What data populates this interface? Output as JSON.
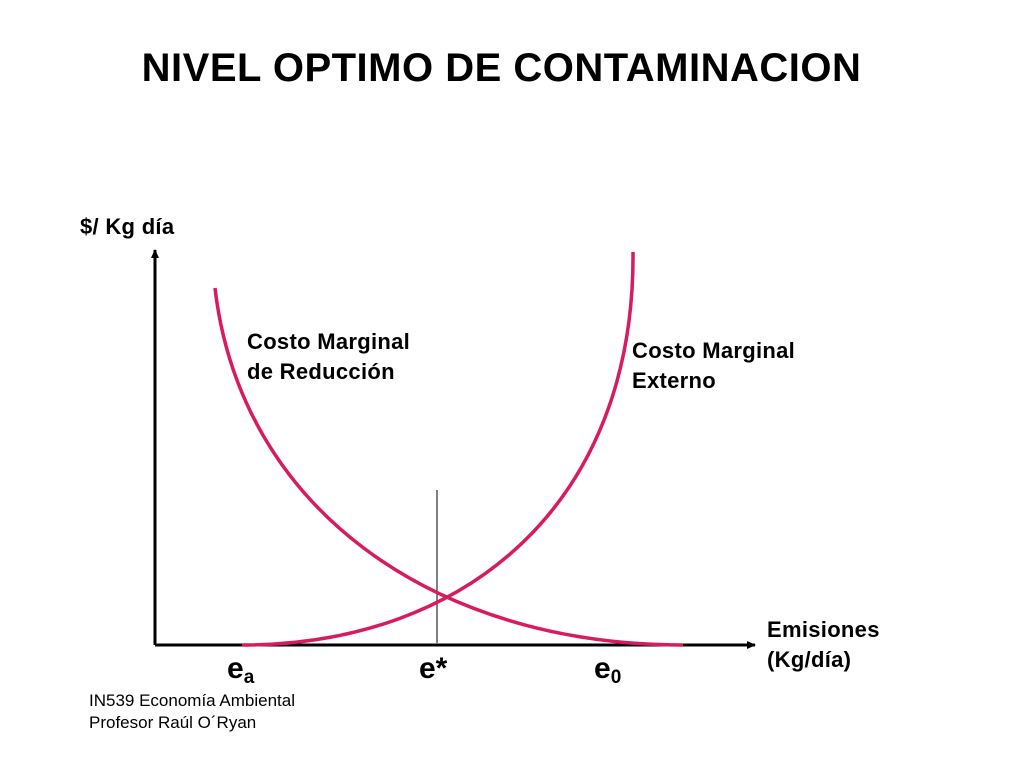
{
  "title": "NIVEL OPTIMO DE CONTAMINACION",
  "y_axis_label": "$/ Kg día",
  "x_axis_label": {
    "line1": "Emisiones",
    "line2": "(Kg/día)"
  },
  "curves": {
    "reduction": {
      "line1": "Costo Marginal",
      "line2": "de Reducción"
    },
    "external": {
      "line1": "Costo Marginal",
      "line2": "Externo"
    }
  },
  "x_ticks": {
    "ea": {
      "base": "e",
      "sub": "a"
    },
    "estar": "e*",
    "e0": {
      "base": "e",
      "sub": "0"
    }
  },
  "footer": {
    "line1": "IN539 Economía Ambiental",
    "line2": "Profesor Raúl O´Ryan"
  },
  "colors": {
    "curve": "#d81b60",
    "axis": "#000000",
    "guide": "#000000"
  }
}
